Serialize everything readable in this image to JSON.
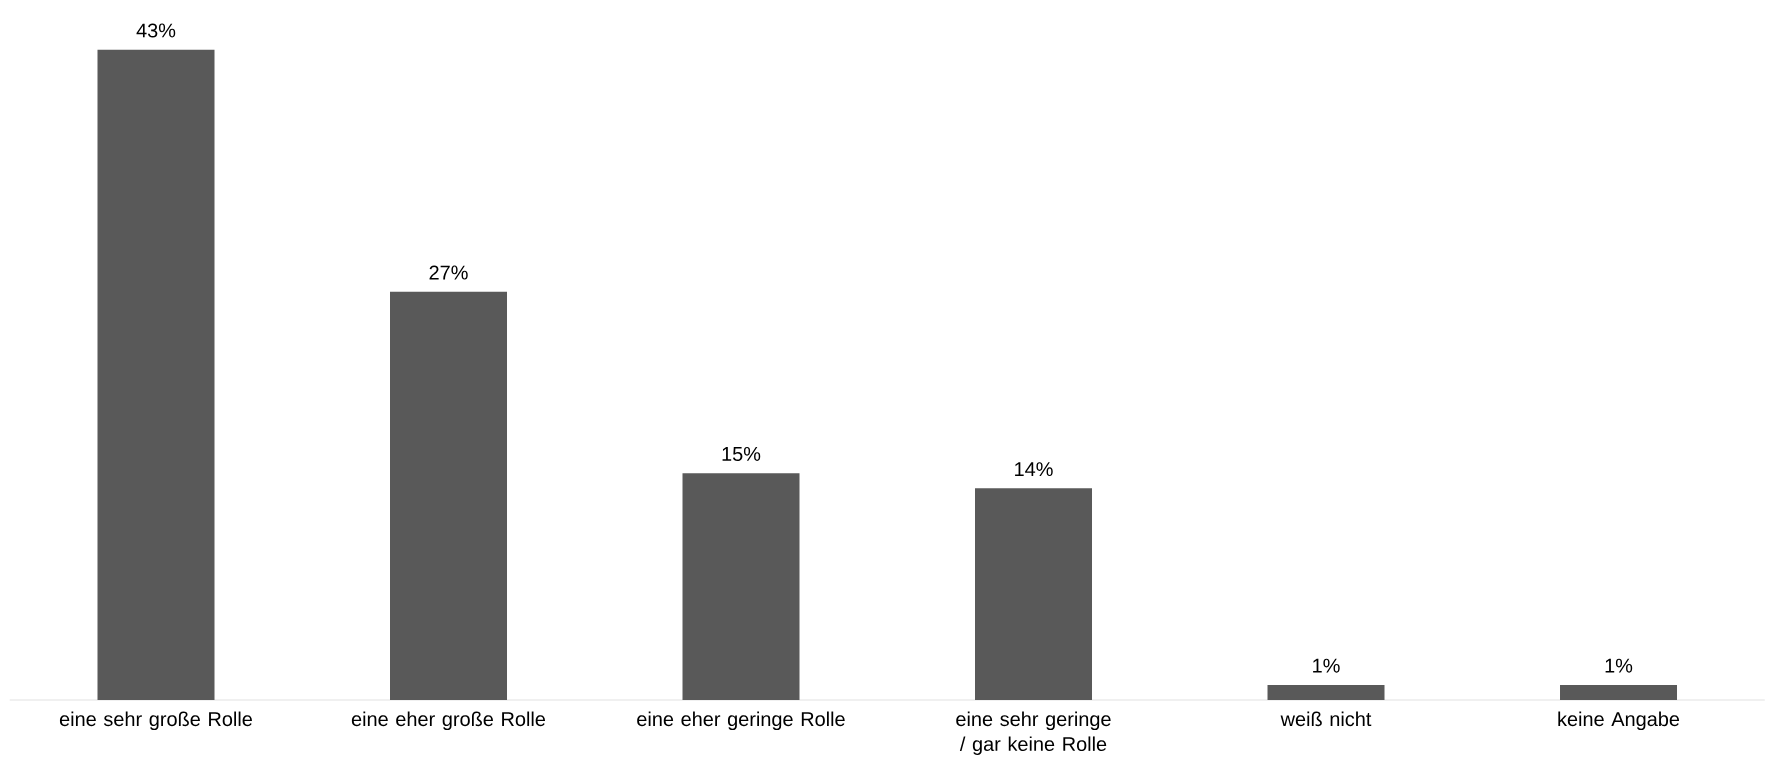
{
  "chart_data": {
    "type": "bar",
    "categories": [
      "eine sehr große Rolle",
      "eine eher große Rolle",
      "eine eher geringe Rolle",
      "eine sehr geringe / gar keine Rolle",
      "weiß nicht",
      "keine Angabe"
    ],
    "values": [
      43,
      27,
      15,
      14,
      1,
      1
    ],
    "value_labels": [
      "43%",
      "27%",
      "15%",
      "14%",
      "1%",
      "1%"
    ],
    "color": "#595959"
  }
}
